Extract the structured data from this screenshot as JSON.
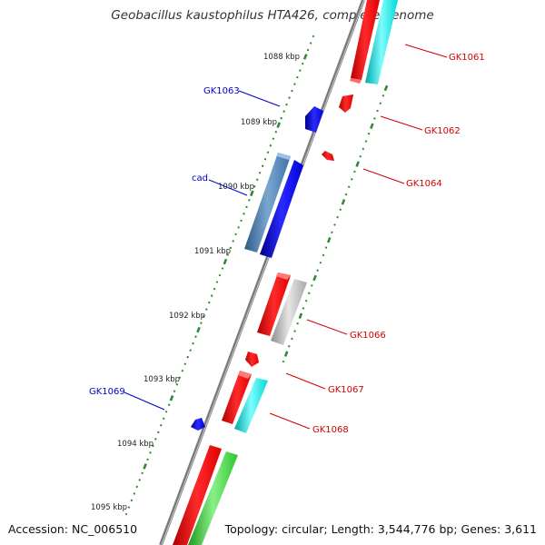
{
  "title": "Geobacillus kaustophilus HTA426, complete genome",
  "footer": {
    "accession": "Accession: NC_006510",
    "info": "Topology: circular; Length: 3,544,776 bp; Genes: 3,611"
  },
  "colors": {
    "backbone": "#7a7a7a",
    "tick": "#2e8b2e",
    "red": "#ff0000",
    "blue": "#0000ff",
    "cyan": "#00e0e0",
    "steel": "#4682b4",
    "gray": "#bbbbbb",
    "green": "#33cc33",
    "label_forward": "#d40000",
    "label_reverse": "#0000cc"
  },
  "kbp_labels": [
    "1088 kbp",
    "1089 kbp",
    "1090 kbp",
    "1091 kbp",
    "1092 kbp",
    "1093 kbp",
    "1094 kbp",
    "1095 kbp"
  ],
  "forward_labels": [
    "GK1061",
    "GK1062",
    "GK1064",
    "GK1066",
    "GK1067",
    "GK1068"
  ],
  "reverse_labels": [
    "GK1063",
    "cad",
    "GK1069"
  ]
}
